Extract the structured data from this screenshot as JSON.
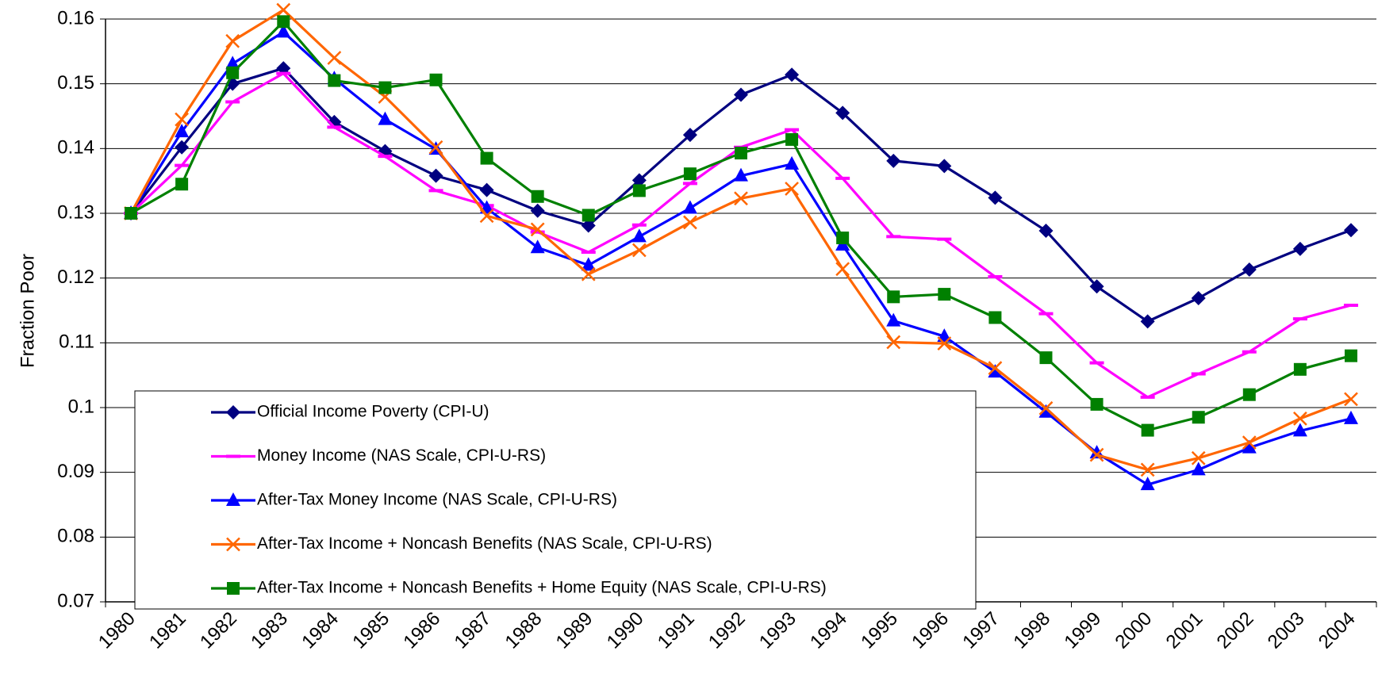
{
  "chart_data": {
    "type": "line",
    "y_label": "Fraction Poor",
    "categories": [
      "1980",
      "1981",
      "1982",
      "1983",
      "1984",
      "1985",
      "1986",
      "1987",
      "1988",
      "1989",
      "1990",
      "1991",
      "1992",
      "1993",
      "1994",
      "1995",
      "1996",
      "1997",
      "1998",
      "1999",
      "2000",
      "2001",
      "2002",
      "2003",
      "2004"
    ],
    "ylim": [
      0.07,
      0.16
    ],
    "yticks": [
      0.07,
      0.08,
      0.09,
      0.1,
      0.11,
      0.12,
      0.13,
      0.14,
      0.15,
      0.16
    ],
    "grid": true,
    "legend": "lower left",
    "series": [
      {
        "name": "Official Income Poverty (CPI-U)",
        "color": "#000080",
        "marker": "diamond",
        "values": [
          0.13,
          0.1402,
          0.15,
          0.1524,
          0.1441,
          0.1396,
          0.1358,
          0.1336,
          0.1304,
          0.1281,
          0.1351,
          0.1421,
          0.1483,
          0.1514,
          0.1455,
          0.1381,
          0.1373,
          0.1324,
          0.1273,
          0.1187,
          0.1133,
          0.1169,
          0.1213,
          0.1245,
          0.1274
        ]
      },
      {
        "name": "Money Income (NAS Scale, CPI-U-RS)",
        "color": "#ff00ff",
        "marker": "dash",
        "values": [
          0.13,
          0.1374,
          0.1472,
          0.1516,
          0.1433,
          0.1388,
          0.1335,
          0.1312,
          0.1271,
          0.124,
          0.1282,
          0.1346,
          0.1402,
          0.1429,
          0.1354,
          0.1264,
          0.126,
          0.1202,
          0.1145,
          0.1069,
          0.1016,
          0.1052,
          0.1086,
          0.1137,
          0.1158
        ]
      },
      {
        "name": "After-Tax Money Income (NAS Scale, CPI-U-RS)",
        "color": "#0000ff",
        "marker": "triangle",
        "values": [
          0.13,
          0.1426,
          0.1531,
          0.158,
          0.1508,
          0.1445,
          0.1399,
          0.1308,
          0.1247,
          0.122,
          0.1264,
          0.1308,
          0.1358,
          0.1376,
          0.1251,
          0.1134,
          0.111,
          0.1055,
          0.0993,
          0.093,
          0.0881,
          0.0904,
          0.0938,
          0.0964,
          0.0983
        ]
      },
      {
        "name": "After-Tax Income + Noncash Benefits (NAS Scale, CPI-U-RS)",
        "color": "#ff6600",
        "marker": "x",
        "values": [
          0.13,
          0.1445,
          0.1566,
          0.1614,
          0.154,
          0.148,
          0.1402,
          0.1296,
          0.1275,
          0.1206,
          0.1243,
          0.1286,
          0.1323,
          0.1338,
          0.1214,
          0.1101,
          0.1099,
          0.1061,
          0.0999,
          0.0927,
          0.0904,
          0.0922,
          0.0946,
          0.0983,
          0.1013
        ]
      },
      {
        "name": "After-Tax Income + Noncash Benefits + Home Equity (NAS Scale, CPI-U-RS)",
        "color": "#008000",
        "marker": "square",
        "values": [
          0.13,
          0.1345,
          0.1517,
          0.1596,
          0.1505,
          0.1494,
          0.1506,
          0.1385,
          0.1326,
          0.1297,
          0.1335,
          0.1361,
          0.1393,
          0.1414,
          0.1262,
          0.1171,
          0.1175,
          0.1139,
          0.1077,
          0.1005,
          0.0965,
          0.0985,
          0.102,
          0.1059,
          0.108
        ]
      }
    ]
  }
}
